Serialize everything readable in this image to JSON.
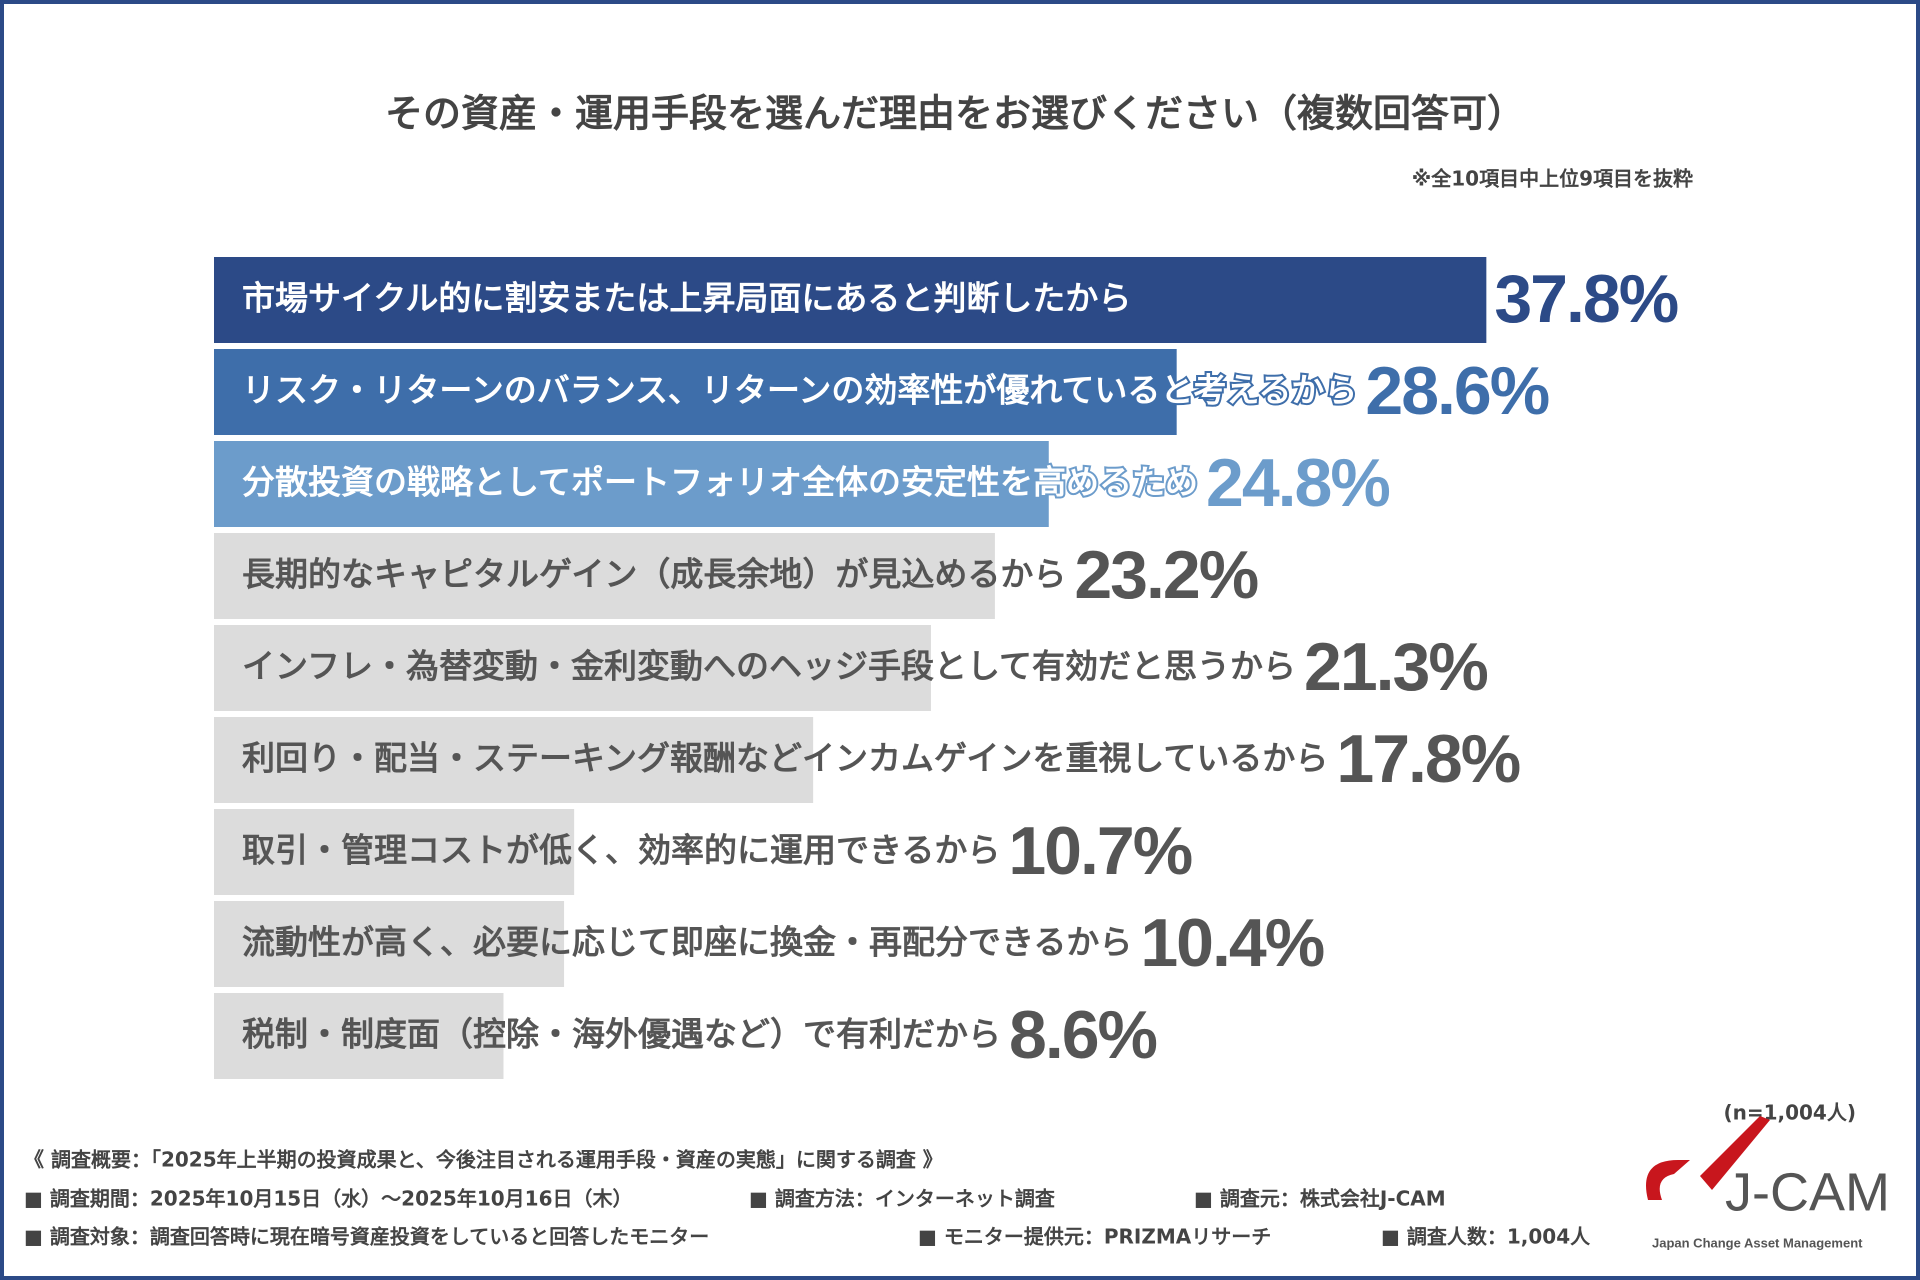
{
  "chart_data": {
    "type": "bar",
    "orientation": "horizontal",
    "title": "その資産・運用手段を選んだ理由をお選びください（複数回答可）",
    "note": "※全10項目中上位9項目を抜粋",
    "categories": [
      "市場サイクル的に割安または上昇局面にあると判断したから",
      "リスク・リターンのバランス、リターンの効率性が優れていると考えるから",
      "分散投資の戦略としてポートフォリオ全体の安定性を高めるため",
      "長期的なキャピタルゲイン（成長余地）が見込めるから",
      "インフレ・為替変動・金利変動へのヘッジ手段として有効だと思うから",
      "利回り・配当・ステーキング報酬などインカムゲインを重視しているから",
      "取引・管理コストが低く、効率的に運用できるから",
      "流動性が高く、必要に応じて即座に換金・再配分できるから",
      "税制・制度面（控除・海外優遇など）で有利だから"
    ],
    "values": [
      37.8,
      28.6,
      24.8,
      23.2,
      21.3,
      17.8,
      10.7,
      10.4,
      8.6
    ],
    "value_labels": [
      "37.8%",
      "28.6%",
      "24.8%",
      "23.2%",
      "21.3%",
      "17.8%",
      "10.7%",
      "10.4%",
      "8.6%"
    ],
    "colors": [
      "#2c4a87",
      "#3e6eaa",
      "#6c9ccb",
      "#dcdcdc",
      "#dcdcdc",
      "#dcdcdc",
      "#dcdcdc",
      "#dcdcdc",
      "#dcdcdc"
    ],
    "label_colors": [
      "#2c4a87",
      "#3e6eaa",
      "#6c9ccb",
      "#555555",
      "#555555",
      "#555555",
      "#555555",
      "#555555",
      "#555555"
    ],
    "text_colors": [
      "#ffffff",
      "#ffffff",
      "#ffffff",
      "#555555",
      "#555555",
      "#555555",
      "#555555",
      "#555555",
      "#555555"
    ],
    "sample": "(n=1,004人)"
  },
  "footer": {
    "summary": "《 調査概要：「2025年上半期の投資成果と、今後注目される運用手段・資産の実態」に関する調査 》",
    "line1": [
      "■ 調査期間：2025年10月15日（水）～2025年10月16日（木）",
      "■ 調査方法：インターネット調査",
      "■ 調査元：株式会社J-CAM"
    ],
    "line2": [
      "■ 調査対象：調査回答時に現在暗号資産投資をしていると回答したモニター",
      "■ モニター提供元：PRIZMAリサーチ",
      "■ 調査人数：1,004人"
    ]
  },
  "logo": {
    "name": "J-CAM",
    "tagline": "Japan Change Asset Management"
  }
}
